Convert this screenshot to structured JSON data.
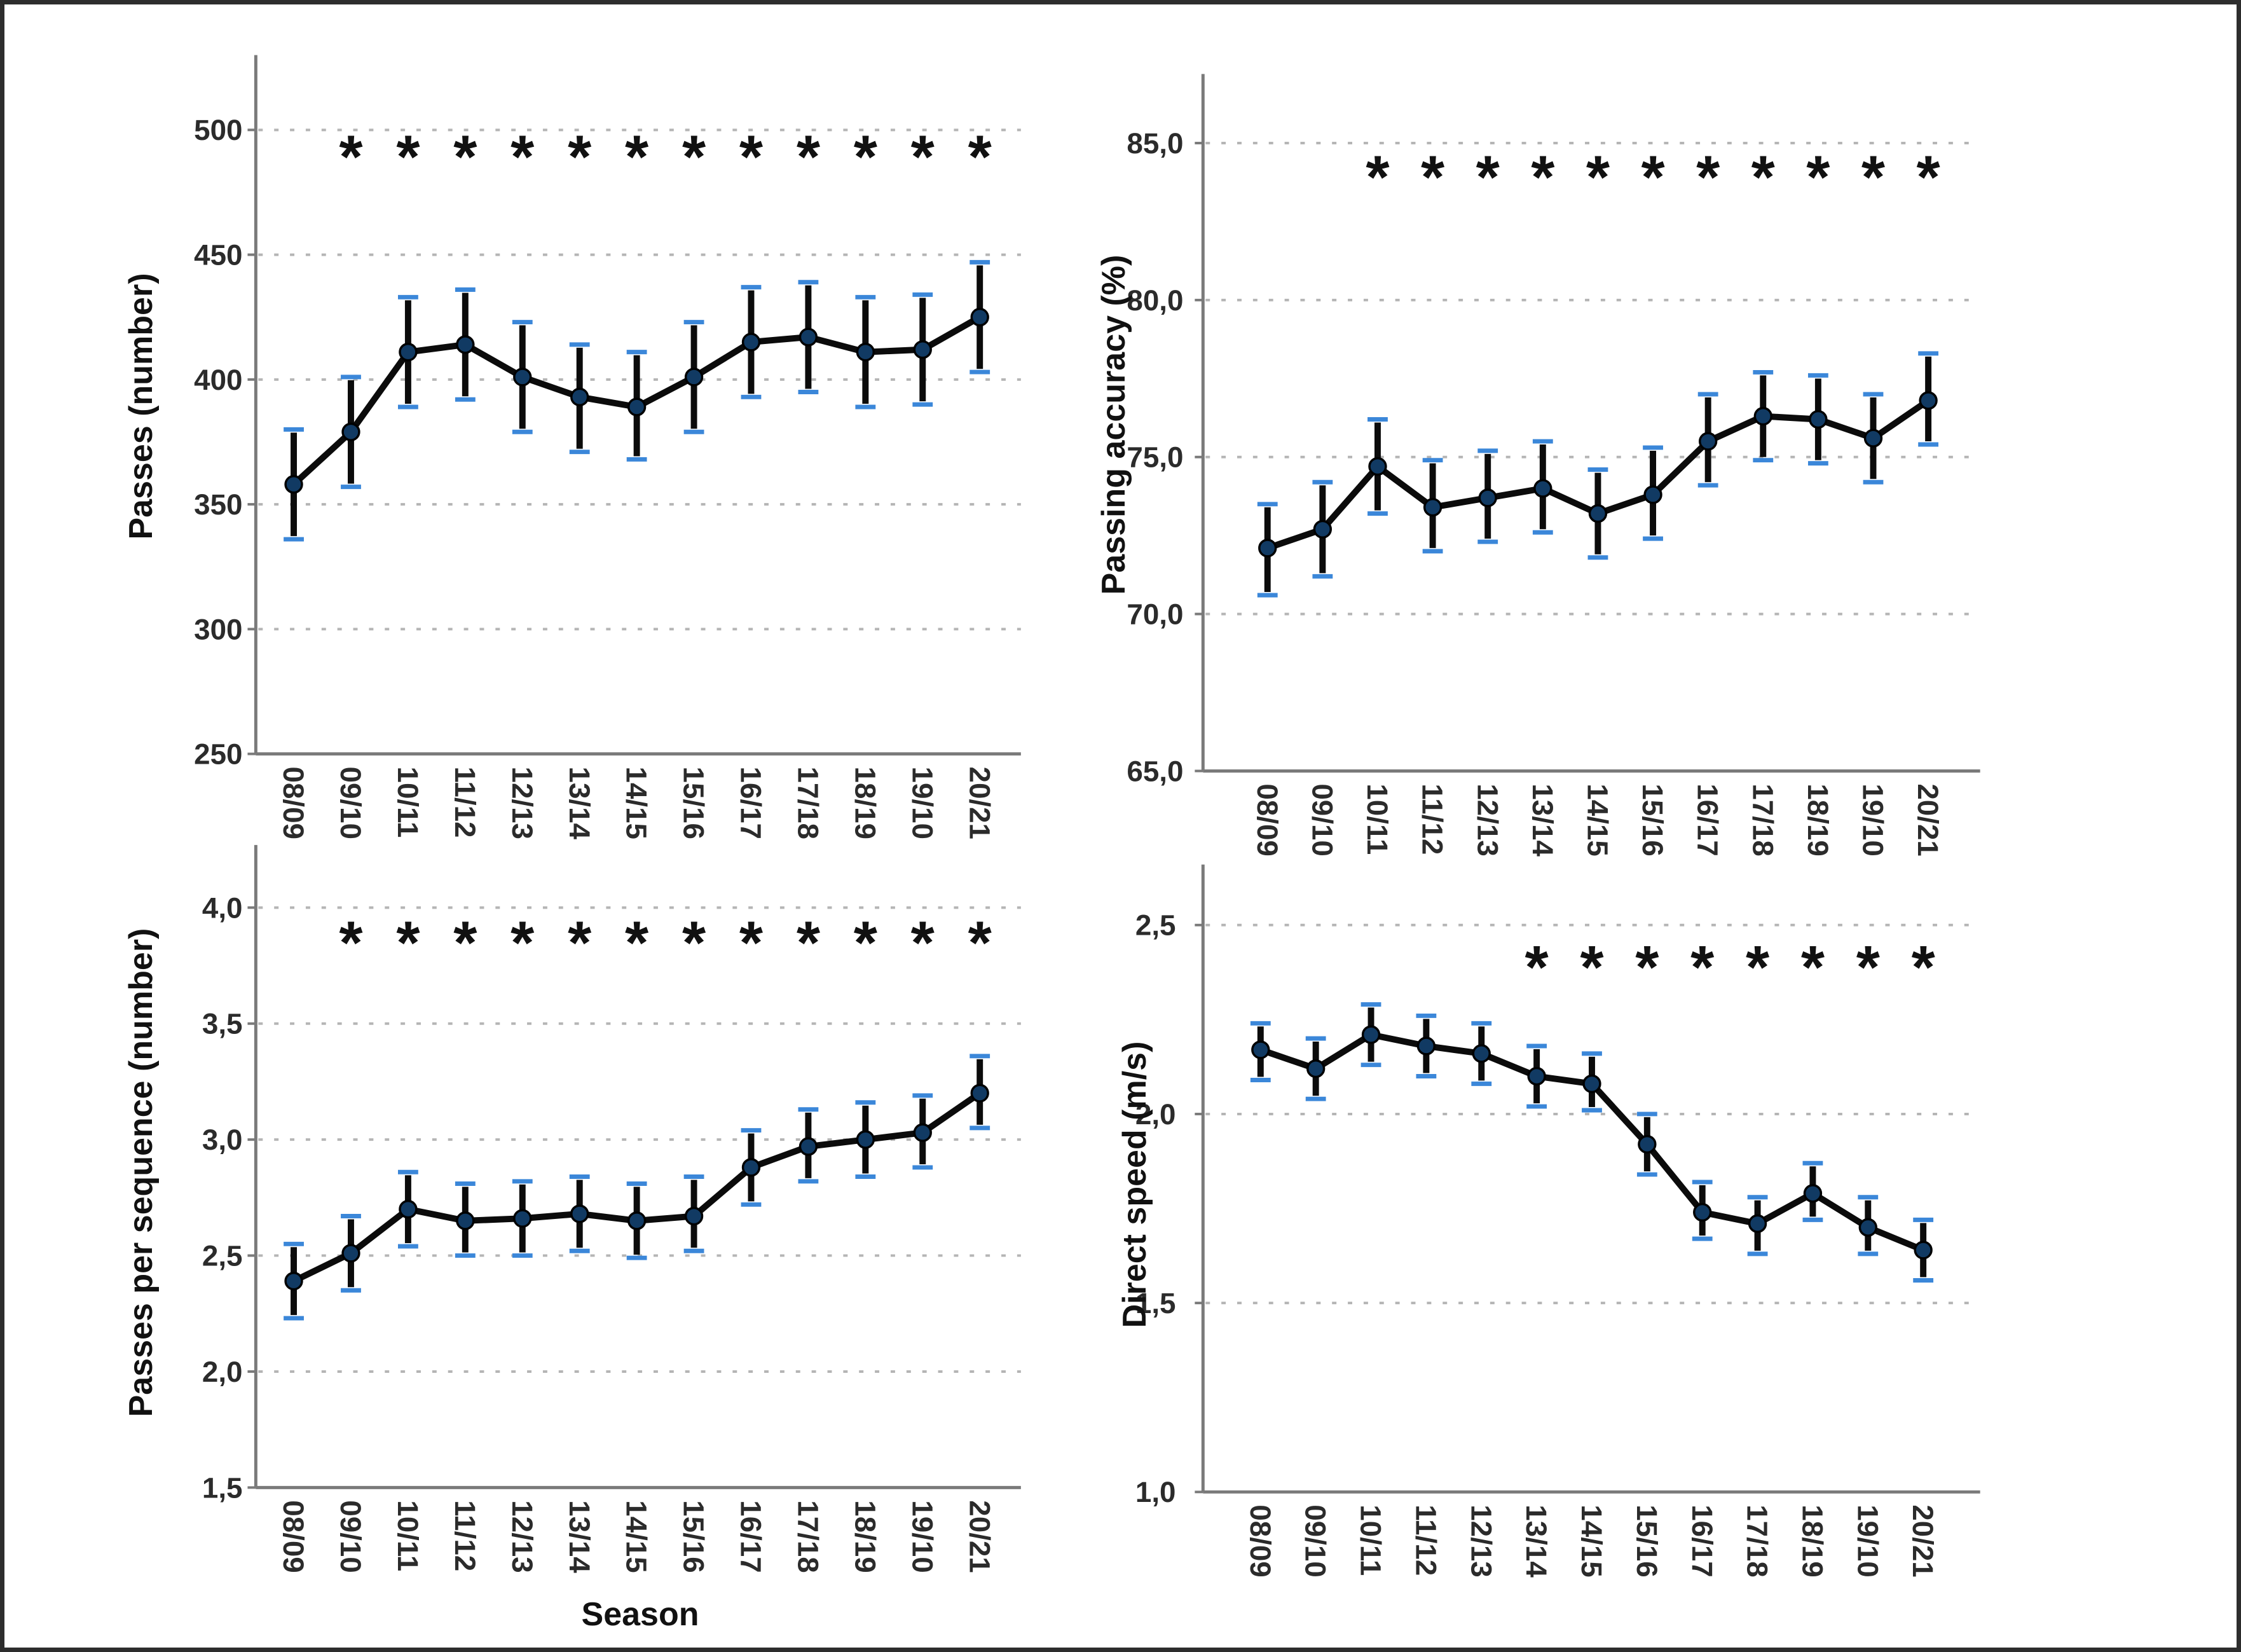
{
  "figure": {
    "background": "#ffffff",
    "border_color": "#2d2d2d",
    "categories": [
      "08/09",
      "09/10",
      "10/11",
      "11/12",
      "12/13",
      "13/14",
      "14/15",
      "15/16",
      "16/17",
      "17/18",
      "18/19",
      "19/10",
      "20/21"
    ],
    "significance_symbol": "*",
    "colors": {
      "line": "#0b0b0b",
      "error_bar": "#0b0b0b",
      "error_cap": "#3b87d9",
      "marker_fill": "#113a63",
      "marker_edge": "#000000",
      "gridline": "#b5b5b5",
      "axis_line": "#7a7a7a",
      "tick_text": "#2b2b2b",
      "title_text": "#111111",
      "asterisk": "#111111"
    }
  },
  "chart_data": [
    {
      "id": "passes",
      "type": "line",
      "position": "top-left",
      "title": "",
      "ylabel": "Passes (number)",
      "xlabel": null,
      "ylim": [
        250,
        530
      ],
      "yticks": [
        250,
        300,
        350,
        400,
        450,
        500
      ],
      "ytick_labels": [
        "250",
        "300",
        "350",
        "400",
        "450",
        "500"
      ],
      "gridlines": [
        300,
        350,
        400,
        450,
        500
      ],
      "grid": true,
      "legend": "none",
      "series": [
        {
          "name": "mean",
          "values": [
            358,
            379,
            411,
            414,
            401,
            393,
            389,
            401,
            415,
            417,
            411,
            412,
            425
          ]
        },
        {
          "name": "lower",
          "values": [
            336,
            357,
            389,
            392,
            379,
            371,
            368,
            379,
            393,
            395,
            389,
            390,
            403
          ]
        },
        {
          "name": "upper",
          "values": [
            380,
            401,
            433,
            436,
            423,
            414,
            411,
            423,
            437,
            439,
            433,
            434,
            447
          ]
        }
      ],
      "significant_seasons": [
        "09/10",
        "10/11",
        "11/12",
        "12/13",
        "13/14",
        "14/15",
        "15/16",
        "16/17",
        "17/18",
        "18/19",
        "19/10",
        "20/21"
      ],
      "significance_row_y": 494
    },
    {
      "id": "passing_accuracy",
      "type": "line",
      "position": "top-right",
      "title": "",
      "ylabel": "Passing accuracy (%)",
      "xlabel": null,
      "ylim": [
        65,
        87.2
      ],
      "yticks": [
        65,
        70,
        75,
        80,
        85
      ],
      "ytick_labels": [
        "65,0",
        "70,0",
        "75,0",
        "80,0",
        "85,0"
      ],
      "gridlines": [
        70,
        75,
        80,
        85
      ],
      "grid": true,
      "legend": "none",
      "series": [
        {
          "name": "mean",
          "values": [
            72.1,
            72.7,
            74.7,
            73.4,
            73.7,
            74.0,
            73.2,
            73.8,
            75.5,
            76.3,
            76.2,
            75.6,
            76.8
          ]
        },
        {
          "name": "lower",
          "values": [
            70.6,
            71.2,
            73.2,
            72.0,
            72.3,
            72.6,
            71.8,
            72.4,
            74.1,
            74.9,
            74.8,
            74.2,
            75.4
          ]
        },
        {
          "name": "upper",
          "values": [
            73.5,
            74.2,
            76.2,
            74.9,
            75.2,
            75.5,
            74.6,
            75.3,
            77.0,
            77.7,
            77.6,
            77.0,
            78.3
          ]
        }
      ],
      "significant_seasons": [
        "10/11",
        "11/12",
        "12/13",
        "13/14",
        "14/15",
        "15/16",
        "16/17",
        "17/18",
        "18/19",
        "19/10",
        "20/21"
      ],
      "significance_row_y": 84.3
    },
    {
      "id": "passes_per_sequence",
      "type": "line",
      "position": "bottom-left",
      "title": "",
      "ylabel": "Passes per sequence (number)",
      "xlabel": "Season",
      "ylim": [
        1.5,
        4.27
      ],
      "yticks": [
        1.5,
        2.0,
        2.5,
        3.0,
        3.5,
        4.0
      ],
      "ytick_labels": [
        "1,5",
        "2,0",
        "2,5",
        "3,0",
        "3,5",
        "4,0"
      ],
      "gridlines": [
        2.0,
        2.5,
        3.0,
        3.5,
        4.0
      ],
      "grid": true,
      "legend": "none",
      "series": [
        {
          "name": "mean",
          "values": [
            2.39,
            2.51,
            2.7,
            2.65,
            2.66,
            2.68,
            2.65,
            2.67,
            2.88,
            2.97,
            3.0,
            3.03,
            3.2
          ]
        },
        {
          "name": "lower",
          "values": [
            2.23,
            2.35,
            2.54,
            2.5,
            2.5,
            2.52,
            2.49,
            2.52,
            2.72,
            2.82,
            2.84,
            2.88,
            3.05
          ]
        },
        {
          "name": "upper",
          "values": [
            2.55,
            2.67,
            2.86,
            2.81,
            2.82,
            2.84,
            2.81,
            2.84,
            3.04,
            3.13,
            3.16,
            3.19,
            3.36
          ]
        }
      ],
      "significant_seasons": [
        "09/10",
        "10/11",
        "11/12",
        "12/13",
        "13/14",
        "14/15",
        "15/16",
        "16/17",
        "17/18",
        "18/19",
        "19/10",
        "20/21"
      ],
      "significance_row_y": 3.9
    },
    {
      "id": "direct_speed",
      "type": "line",
      "position": "bottom-right",
      "title": "",
      "ylabel": "Direct speed (m/s)",
      "xlabel": null,
      "ylim": [
        1.0,
        2.66
      ],
      "yticks": [
        1.0,
        1.5,
        2.0,
        2.5
      ],
      "ytick_labels": [
        "1,0",
        "1,5",
        "2,0",
        "2,5"
      ],
      "gridlines": [
        1.5,
        2.0,
        2.5
      ],
      "grid": true,
      "legend": "none",
      "series": [
        {
          "name": "mean",
          "values": [
            2.17,
            2.12,
            2.21,
            2.18,
            2.16,
            2.1,
            2.08,
            1.92,
            1.74,
            1.71,
            1.79,
            1.7,
            1.64
          ]
        },
        {
          "name": "lower",
          "values": [
            2.09,
            2.04,
            2.13,
            2.1,
            2.08,
            2.02,
            2.01,
            1.84,
            1.67,
            1.63,
            1.72,
            1.63,
            1.56
          ]
        },
        {
          "name": "upper",
          "values": [
            2.24,
            2.2,
            2.29,
            2.26,
            2.24,
            2.18,
            2.16,
            2.0,
            1.82,
            1.78,
            1.87,
            1.78,
            1.72
          ]
        }
      ],
      "significant_seasons": [
        "13/14",
        "14/15",
        "15/16",
        "16/17",
        "17/18",
        "18/19",
        "19/10",
        "20/21"
      ],
      "significance_row_y": 2.42
    }
  ]
}
